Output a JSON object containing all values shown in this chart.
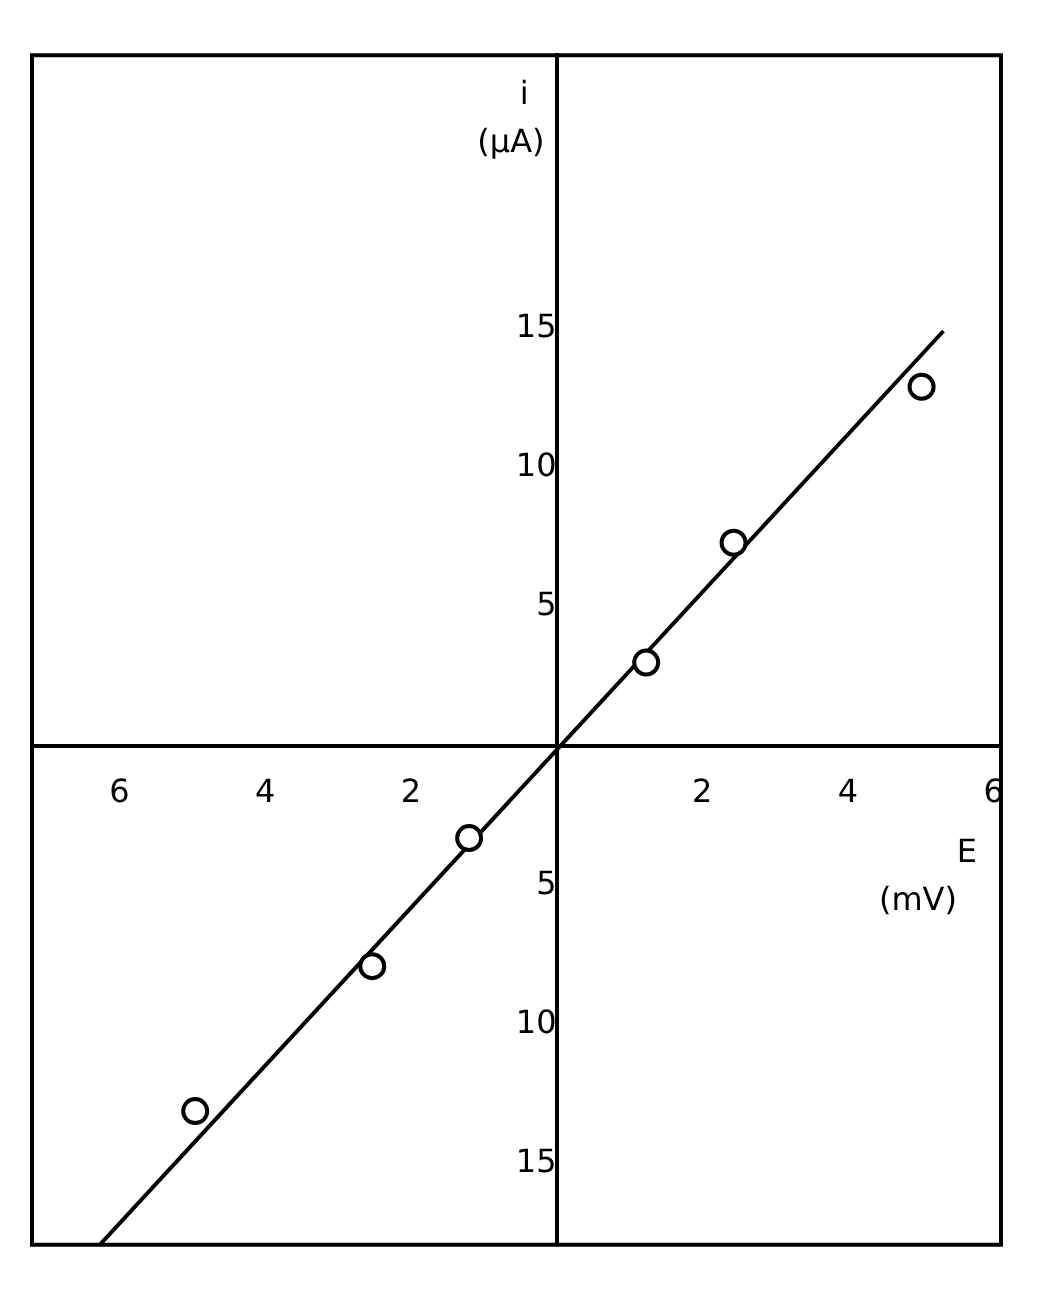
{
  "chart_data": {
    "type": "scatter",
    "xlabel": "E (mV)",
    "ylabel": "i (µA)",
    "xlim": [
      -7.2,
      6.1
    ],
    "ylim": [
      -17.9,
      24.8
    ],
    "xticks": [
      {
        "value": -6,
        "label": "6"
      },
      {
        "value": -4,
        "label": "4"
      },
      {
        "value": -2,
        "label": "2"
      },
      2,
      4,
      6
    ],
    "yticks": [
      {
        "value": -15,
        "label": "15"
      },
      {
        "value": -10,
        "label": "10"
      },
      {
        "value": -5,
        "label": "5"
      },
      5,
      10,
      15
    ],
    "legend": false,
    "series": [
      {
        "type": "scatter",
        "marker": "circle",
        "color": "#000000",
        "x": [
          -4.96,
          -2.53,
          -1.2,
          1.23,
          2.43,
          5.01
        ],
        "values": [
          -13.1,
          -7.9,
          -3.3,
          3.0,
          7.3,
          12.9
        ]
      },
      {
        "type": "line",
        "marker": "none",
        "color": "#000000",
        "x": [
          -6.27,
          5.31
        ],
        "values": [
          -17.9,
          14.9
        ]
      }
    ]
  }
}
